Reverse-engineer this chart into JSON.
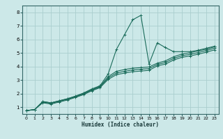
{
  "xlabel": "Humidex (Indice chaleur)",
  "ylabel": "",
  "bg_color": "#cce8e8",
  "grid_color": "#aacece",
  "line_color": "#1a6b5a",
  "xlim": [
    -0.5,
    23.5
  ],
  "ylim": [
    0.5,
    8.5
  ],
  "xticks": [
    0,
    1,
    2,
    3,
    4,
    5,
    6,
    7,
    8,
    9,
    10,
    11,
    12,
    13,
    14,
    15,
    16,
    17,
    18,
    19,
    20,
    21,
    22,
    23
  ],
  "yticks": [
    1,
    2,
    3,
    4,
    5,
    6,
    7,
    8
  ],
  "lines": [
    {
      "x": [
        0,
        1,
        2,
        3,
        4,
        5,
        6,
        7,
        8,
        9,
        10,
        11,
        12,
        13,
        14,
        15,
        16,
        17,
        18,
        19,
        20,
        21,
        22,
        23
      ],
      "y": [
        0.75,
        0.82,
        1.42,
        1.32,
        1.47,
        1.62,
        1.82,
        2.05,
        2.35,
        2.58,
        3.45,
        5.25,
        6.35,
        7.45,
        7.78,
        4.2,
        5.75,
        5.4,
        5.1,
        5.1,
        5.1,
        5.2,
        5.35,
        5.5
      ]
    },
    {
      "x": [
        0,
        1,
        2,
        3,
        4,
        5,
        6,
        7,
        8,
        9,
        10,
        11,
        12,
        13,
        14,
        15,
        16,
        17,
        18,
        19,
        20,
        21,
        22,
        23
      ],
      "y": [
        0.75,
        0.82,
        1.42,
        1.32,
        1.47,
        1.62,
        1.8,
        2.02,
        2.3,
        2.53,
        3.25,
        3.65,
        3.78,
        3.88,
        3.92,
        3.97,
        4.25,
        4.42,
        4.72,
        4.92,
        5.02,
        5.15,
        5.28,
        5.45
      ]
    },
    {
      "x": [
        0,
        1,
        2,
        3,
        4,
        5,
        6,
        7,
        8,
        9,
        10,
        11,
        12,
        13,
        14,
        15,
        16,
        17,
        18,
        19,
        20,
        21,
        22,
        23
      ],
      "y": [
        0.75,
        0.82,
        1.38,
        1.28,
        1.43,
        1.58,
        1.76,
        1.98,
        2.26,
        2.49,
        3.15,
        3.52,
        3.65,
        3.75,
        3.8,
        3.85,
        4.15,
        4.3,
        4.6,
        4.8,
        4.9,
        5.03,
        5.18,
        5.35
      ]
    },
    {
      "x": [
        0,
        1,
        2,
        3,
        4,
        5,
        6,
        7,
        8,
        9,
        10,
        11,
        12,
        13,
        14,
        15,
        16,
        17,
        18,
        19,
        20,
        21,
        22,
        23
      ],
      "y": [
        0.75,
        0.82,
        1.33,
        1.23,
        1.38,
        1.53,
        1.72,
        1.93,
        2.21,
        2.44,
        3.05,
        3.4,
        3.52,
        3.62,
        3.67,
        3.72,
        4.05,
        4.18,
        4.48,
        4.68,
        4.78,
        4.91,
        5.06,
        5.23
      ]
    }
  ]
}
